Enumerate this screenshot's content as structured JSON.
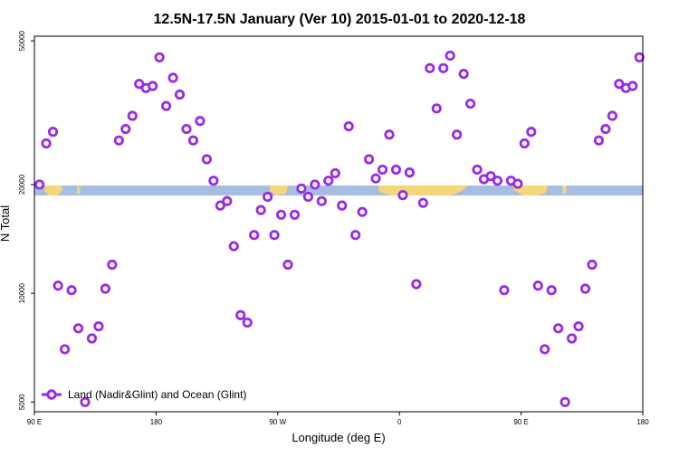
{
  "chart_data": {
    "type": "scatter",
    "title": "12.5N-17.5N January (Ver 10)   2015-01-01 to 2020-12-18",
    "xlabel": "Longitude (deg E)",
    "ylabel": "N Total",
    "y_scale": "log",
    "xlim": [
      90,
      450
    ],
    "ylim": [
      4700,
      51500
    ],
    "x_ticks": [
      {
        "value": 90,
        "label": "90 E"
      },
      {
        "value": 162,
        "label": "180"
      },
      {
        "value": 234,
        "label": "90 W"
      },
      {
        "value": 306,
        "label": "0"
      },
      {
        "value": 378,
        "label": "90 E"
      },
      {
        "value": 450,
        "label": "180"
      }
    ],
    "y_ticks": [
      {
        "value": 5000,
        "label": "5000"
      },
      {
        "value": 10000,
        "label": "10000"
      },
      {
        "value": 20000,
        "label": "20000"
      },
      {
        "value": 50000,
        "label": "50000"
      }
    ],
    "legend": {
      "position": "bottom-left",
      "label": "Land (Nadir&Glint) and Ocean (Glint)"
    },
    "colors": {
      "series": "#9b2be0",
      "ocean": "#a5bde0",
      "land": "#f5d67a"
    },
    "series": [
      {
        "name": "Land (Nadir&Glint) and Ocean (Glint)",
        "x": [
          93,
          97,
          101,
          104,
          108,
          112,
          116,
          120,
          124,
          128,
          132,
          136,
          140,
          144,
          148,
          152,
          156,
          160,
          164,
          168,
          172,
          176,
          180,
          184,
          188,
          192,
          196,
          200,
          204,
          208,
          212,
          216,
          220,
          224,
          228,
          232,
          236,
          240,
          244,
          248,
          252,
          256,
          260,
          264,
          268,
          272,
          276,
          280,
          284,
          288,
          292,
          296,
          300,
          304,
          308,
          312,
          316,
          320,
          324,
          328,
          332,
          336,
          340,
          344,
          348,
          352,
          356,
          360,
          364,
          368,
          372,
          376,
          380,
          384,
          388,
          392,
          396,
          400,
          404,
          408,
          412,
          416,
          420,
          424,
          428,
          432,
          436,
          440,
          444,
          448
        ],
        "y": [
          20000,
          26000,
          28000,
          10500,
          7000,
          10200,
          8000,
          5000,
          7500,
          8100,
          10300,
          12000,
          26500,
          28500,
          31000,
          38000,
          37000,
          37500,
          45000,
          33000,
          39500,
          35500,
          28500,
          26500,
          30000,
          23500,
          20500,
          17500,
          18000,
          13500,
          8700,
          8300,
          14500,
          17000,
          18500,
          14500,
          16500,
          12000,
          16500,
          19500,
          18500,
          20000,
          18000,
          20500,
          21500,
          17500,
          29000,
          14500,
          16800,
          23500,
          20800,
          22000,
          27500,
          22000,
          18700,
          21600,
          10600,
          17800,
          42000,
          32500,
          42000,
          45500,
          27500,
          40500,
          33500,
          22000,
          20700,
          21100,
          20500,
          10200,
          20500,
          20100,
          26000,
          28000,
          10500,
          7000,
          10200,
          8000,
          5000,
          7500,
          8100,
          10300,
          12000,
          26500,
          28500,
          31000,
          38000,
          37000,
          37500,
          45000
        ]
      }
    ]
  }
}
